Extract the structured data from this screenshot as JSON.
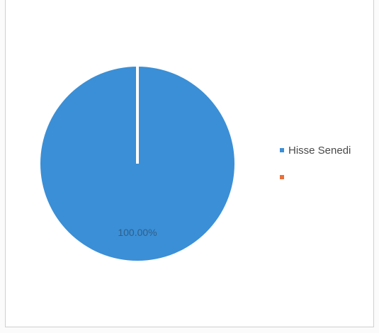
{
  "chart_data": {
    "type": "pie",
    "slices": [
      {
        "name": "Hisse Senedi",
        "value": 100.0,
        "label": "100.00%",
        "color": "#3b8fd6"
      },
      {
        "name": "",
        "value": 0.0,
        "label": "",
        "color": "#e8703a"
      }
    ],
    "legend_position": "right"
  }
}
